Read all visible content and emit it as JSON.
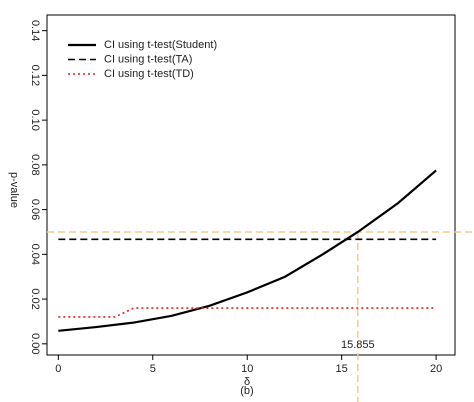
{
  "chart_data": {
    "type": "line",
    "y_label": "p-value",
    "x_label": "δ",
    "caption": "(b)",
    "xlim": [
      -0.6,
      21
    ],
    "ylim": [
      -0.005,
      0.147
    ],
    "xticks": [
      0,
      5,
      10,
      15,
      20
    ],
    "yticks": [
      {
        "value": 0,
        "label": "0.00"
      },
      {
        "value": 0.02,
        "label": "0.02"
      },
      {
        "value": 0.04,
        "label": "0.04"
      },
      {
        "value": 0.06,
        "label": "0.06"
      },
      {
        "value": 0.08,
        "label": "0.08"
      },
      {
        "value": 0.1,
        "label": "0.10"
      },
      {
        "value": 0.12,
        "label": "0.12"
      },
      {
        "value": 0.14,
        "label": "0.14"
      }
    ],
    "series": [
      {
        "name": "CI using t-test(Student)",
        "color": "#000000",
        "dash": "solid",
        "x": [
          0,
          2,
          4,
          6,
          8,
          10,
          12,
          14,
          15.855,
          18,
          20
        ],
        "values": [
          0.0058,
          0.0075,
          0.0095,
          0.0125,
          0.017,
          0.023,
          0.03,
          0.04,
          0.05,
          0.063,
          0.0775
        ]
      },
      {
        "name": "CI using t-test(TA)",
        "color": "#000000",
        "dash": "dashed",
        "x": [
          0,
          20
        ],
        "values": [
          0.0467,
          0.0467
        ]
      },
      {
        "name": "CI using t-test(TD)",
        "color": "#e02020",
        "dash": "dotted",
        "x": [
          0,
          3,
          4,
          20
        ],
        "values": [
          0.012,
          0.012,
          0.016,
          0.016
        ]
      }
    ],
    "threshold_x": 15.855,
    "threshold_y": 0.05,
    "threshold_color": "#f8c88c"
  }
}
